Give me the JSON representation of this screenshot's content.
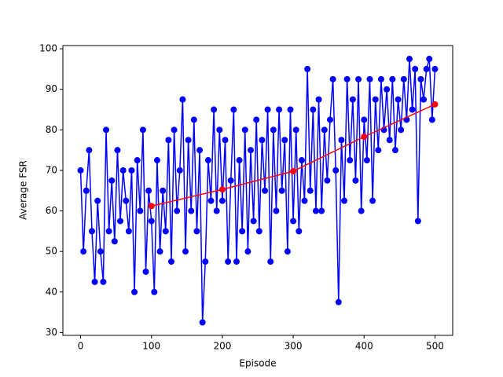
{
  "chart_data": {
    "type": "line",
    "x_label": "Episode",
    "y_label": "Average FSR",
    "xlim": [
      -25,
      525
    ],
    "ylim": [
      29.3,
      100.8
    ],
    "xticks": [
      0,
      100,
      200,
      300,
      400,
      500
    ],
    "yticks": [
      30,
      40,
      50,
      60,
      70,
      80,
      90,
      100
    ],
    "series": [
      {
        "color": "blue",
        "x": [
          0,
          4,
          8,
          12,
          16,
          20,
          24,
          28,
          32,
          36,
          40,
          44,
          48,
          52,
          56,
          60,
          64,
          68,
          72,
          76,
          80,
          84,
          88,
          92,
          96,
          100,
          104,
          108,
          112,
          116,
          120,
          124,
          128,
          132,
          136,
          140,
          144,
          148,
          152,
          156,
          160,
          164,
          168,
          172,
          176,
          180,
          184,
          188,
          192,
          196,
          200,
          204,
          208,
          212,
          216,
          220,
          224,
          228,
          232,
          236,
          240,
          244,
          248,
          252,
          256,
          260,
          264,
          268,
          272,
          276,
          280,
          284,
          288,
          292,
          296,
          300,
          304,
          308,
          312,
          316,
          320,
          324,
          328,
          332,
          336,
          340,
          344,
          348,
          352,
          356,
          360,
          364,
          368,
          372,
          376,
          380,
          384,
          388,
          392,
          396,
          400,
          404,
          408,
          412,
          416,
          420,
          424,
          428,
          432,
          436,
          440,
          444,
          448,
          452,
          456,
          460,
          464,
          468,
          472,
          476,
          480,
          484,
          488,
          492,
          496,
          500
        ],
        "values": [
          70,
          50,
          65,
          75,
          55,
          42.5,
          62.5,
          50,
          42.5,
          80,
          55,
          67.5,
          52.5,
          75,
          57.5,
          70,
          62.5,
          55,
          70,
          40,
          72.5,
          60,
          80,
          45,
          65,
          57.5,
          40,
          72.5,
          50,
          65,
          55,
          77.5,
          47.5,
          80,
          60,
          70,
          87.5,
          50,
          77.5,
          60,
          82.5,
          55,
          75,
          32.5,
          47.5,
          72.5,
          62.5,
          85,
          60,
          80,
          62.5,
          77.5,
          47.5,
          67.5,
          85,
          47.5,
          72.5,
          55,
          80,
          50,
          75,
          57.5,
          82.5,
          55,
          77.5,
          65,
          85,
          47.5,
          80,
          60,
          85,
          65,
          77.5,
          50,
          85,
          57.5,
          80,
          55,
          72.5,
          62.5,
          95,
          65,
          85,
          60,
          87.5,
          60,
          80,
          67.5,
          82.5,
          92.5,
          70,
          37.5,
          77.5,
          62.5,
          92.5,
          72.5,
          87.5,
          67.5,
          92.5,
          60,
          82.5,
          72.5,
          92.5,
          62.5,
          87.5,
          75,
          92.5,
          80,
          90,
          77.5,
          92.5,
          75,
          87.5,
          80,
          92.5,
          82.5,
          97.5,
          85,
          95,
          57.5,
          92.5,
          87.5,
          95,
          97.5,
          82.5,
          95
        ]
      },
      {
        "color": "red",
        "x": [
          100,
          200,
          300,
          400,
          500
        ],
        "values": [
          61.2,
          65.3,
          69.8,
          78.3,
          86.3
        ]
      }
    ]
  }
}
